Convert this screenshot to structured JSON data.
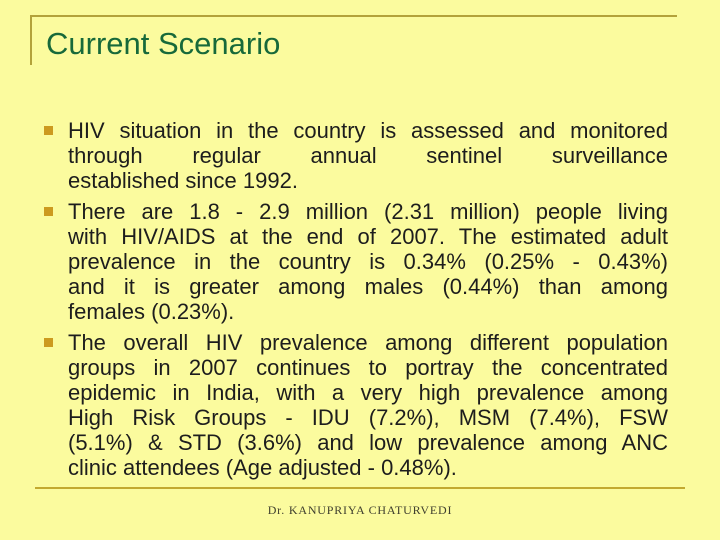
{
  "slide": {
    "title": "Current Scenario",
    "footer": "Dr. KANUPRIYA CHATURVEDI"
  },
  "bullets": [
    {
      "text": "HIV situation in the country is assessed and monitored through regular annual sentinel surveillance established since 1992.",
      "lines": [
        "HIV situation in the country is assessed and monitored",
        "through regular annual sentinel surveillance",
        "established since 1992."
      ]
    },
    {
      "text": "There are 1.8 - 2.9 million (2.31 million) people living with HIV/AIDS at the end of 2007. The estimated adult prevalence in the country is 0.34% (0.25% - 0.43%) and it is greater among males (0.44%) than among females (0.23%).",
      "lines": [
        "There are 1.8 - 2.9 million (2.31 million) people living",
        "with HIV/AIDS at the end of 2007. The estimated adult",
        "prevalence in the country is 0.34% (0.25% - 0.43%)",
        "and it is greater among males (0.44%) than among",
        "females (0.23%)."
      ]
    },
    {
      "text": "The overall HIV prevalence among different population groups in 2007 continues to portray the concentrated epidemic in India, with a very high prevalence among High Risk Groups - IDU (7.2%), MSM (7.4%), FSW (5.1%) & STD (3.6%) and low prevalence among ANC clinic attendees (Age adjusted - 0.48%).",
      "lines": [
        "The overall HIV prevalence among different population",
        "groups in 2007 continues to portray the concentrated",
        "epidemic in India, with a very high prevalence among",
        "High Risk Groups - IDU (7.2%), MSM (7.4%), FSW",
        "(5.1%) & STD (3.6%) and low prevalence among ANC",
        "clinic attendees (Age adjusted - 0.48%)."
      ]
    }
  ],
  "colors": {
    "background": "#FBFB9E",
    "title_green": "#17693A",
    "rule_top": "#B3A23A",
    "rule_bottom": "#C3A92F",
    "bullet_square": "#CC9A1F",
    "body_text": "#1D1D1D",
    "footer_text": "#3F3F2E"
  }
}
